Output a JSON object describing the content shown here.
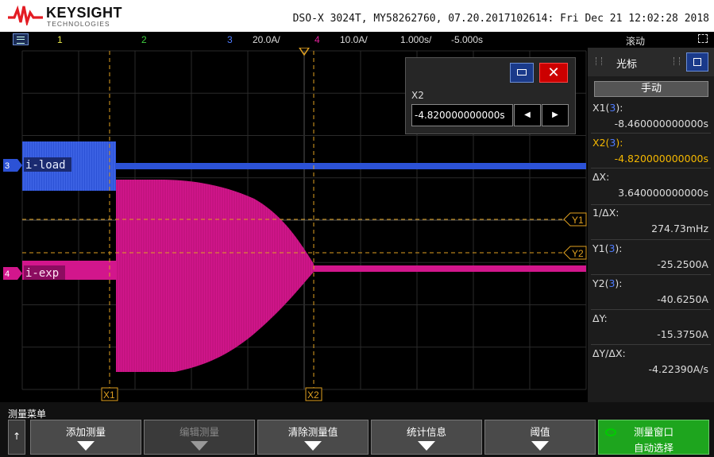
{
  "header": {
    "brand": "KEYSIGHT",
    "brand_sub": "TECHNOLOGIES",
    "device_info": "DSO-X 3024T, MY58262760, 07.20.2017102614: Fri Dec 21 12:02:28 2018"
  },
  "statusbar": {
    "ch1": "1",
    "ch2": "2",
    "ch3": "3",
    "ch3_scale": "20.0A/",
    "ch4": "4",
    "ch4_scale": "10.0A/",
    "timebase": "1.000s/",
    "delay": "-5.000s",
    "mode": "滚动"
  },
  "waveform": {
    "ch3_label": "i-load",
    "ch4_label": "i-exp",
    "ch3_marker": "3",
    "ch4_marker": "4",
    "cursor_x1_label": "X1",
    "cursor_x2_label": "X2",
    "cursor_y1_label": "Y1",
    "cursor_y2_label": "Y2",
    "colors": {
      "ch3": "#2c52d6",
      "ch4": "#d2168c",
      "cursor": "#e0a020",
      "grid": "#2a2a2a"
    }
  },
  "cursor_dialog": {
    "label": "X2",
    "value": "-4.820000000000s",
    "close": "✕",
    "left": "◀",
    "right": "▶"
  },
  "right_panel": {
    "title": "光标",
    "mode": "手动",
    "x1_label": "X1(",
    "x1_ch": "3",
    "x1_close": "):",
    "x1_value": "-8.460000000000s",
    "x2_label": "X2(",
    "x2_ch": "3",
    "x2_close": "):",
    "x2_value": "-4.820000000000s",
    "dx_label": "ΔX:",
    "dx_value": "3.640000000000s",
    "inv_dx_label": "1/ΔX:",
    "inv_dx_value": "274.73mHz",
    "y1_label": "Y1(",
    "y1_ch": "3",
    "y1_close": "):",
    "y1_value": "-25.2500A",
    "y2_label": "Y2(",
    "y2_ch": "3",
    "y2_close": "):",
    "y2_value": "-40.6250A",
    "dy_label": "ΔY:",
    "dy_value": "-15.3750A",
    "dydx_label": "ΔY/ΔX:",
    "dydx_value": "-4.22390A/s"
  },
  "bottom_menu": {
    "title": "测量菜单",
    "up": "↑",
    "b1": "添加测量",
    "b2": "编辑测量",
    "b3": "清除测量值",
    "b4": "统计信息",
    "b5": "阈值",
    "b6_line1": "测量窗口",
    "b6_line2": "自动选择"
  }
}
